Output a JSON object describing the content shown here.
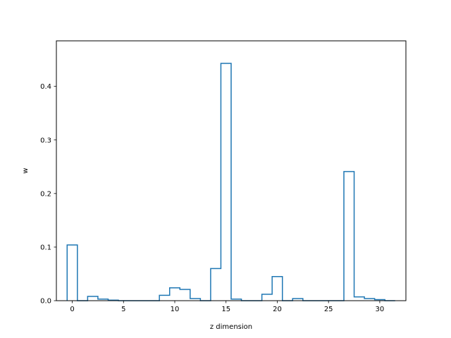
{
  "chart_data": {
    "type": "line",
    "style": "step",
    "xlabel": "z dimension",
    "ylabel": "w",
    "xlim": [
      -1.55,
      32.55
    ],
    "ylim": [
      0,
      0.485
    ],
    "xticks": [
      0,
      5,
      10,
      15,
      20,
      25,
      30
    ],
    "yticks": [
      0.0,
      0.1,
      0.2,
      0.3,
      0.4
    ],
    "ytick_labels": [
      "0.0",
      "0.1",
      "0.2",
      "0.3",
      "0.4"
    ],
    "grid": false,
    "line_color": "#1f77b4",
    "series": [
      {
        "x": [
          0,
          1,
          2,
          3,
          4,
          5,
          6,
          7,
          8,
          9,
          10,
          11,
          12,
          13,
          14,
          15,
          16,
          17,
          18,
          19,
          20,
          21,
          22,
          23,
          24,
          25,
          26,
          27,
          28,
          29,
          30,
          31
        ],
        "values": [
          0.104,
          0.0,
          0.008,
          0.003,
          0.001,
          0.0,
          0.0,
          0.0,
          0.0,
          0.01,
          0.024,
          0.021,
          0.004,
          0.0,
          0.06,
          0.443,
          0.003,
          0.0,
          0.0,
          0.012,
          0.045,
          0.0,
          0.004,
          0.0,
          0.0,
          0.0,
          0.0,
          0.241,
          0.007,
          0.004,
          0.002,
          0.0
        ]
      }
    ]
  }
}
